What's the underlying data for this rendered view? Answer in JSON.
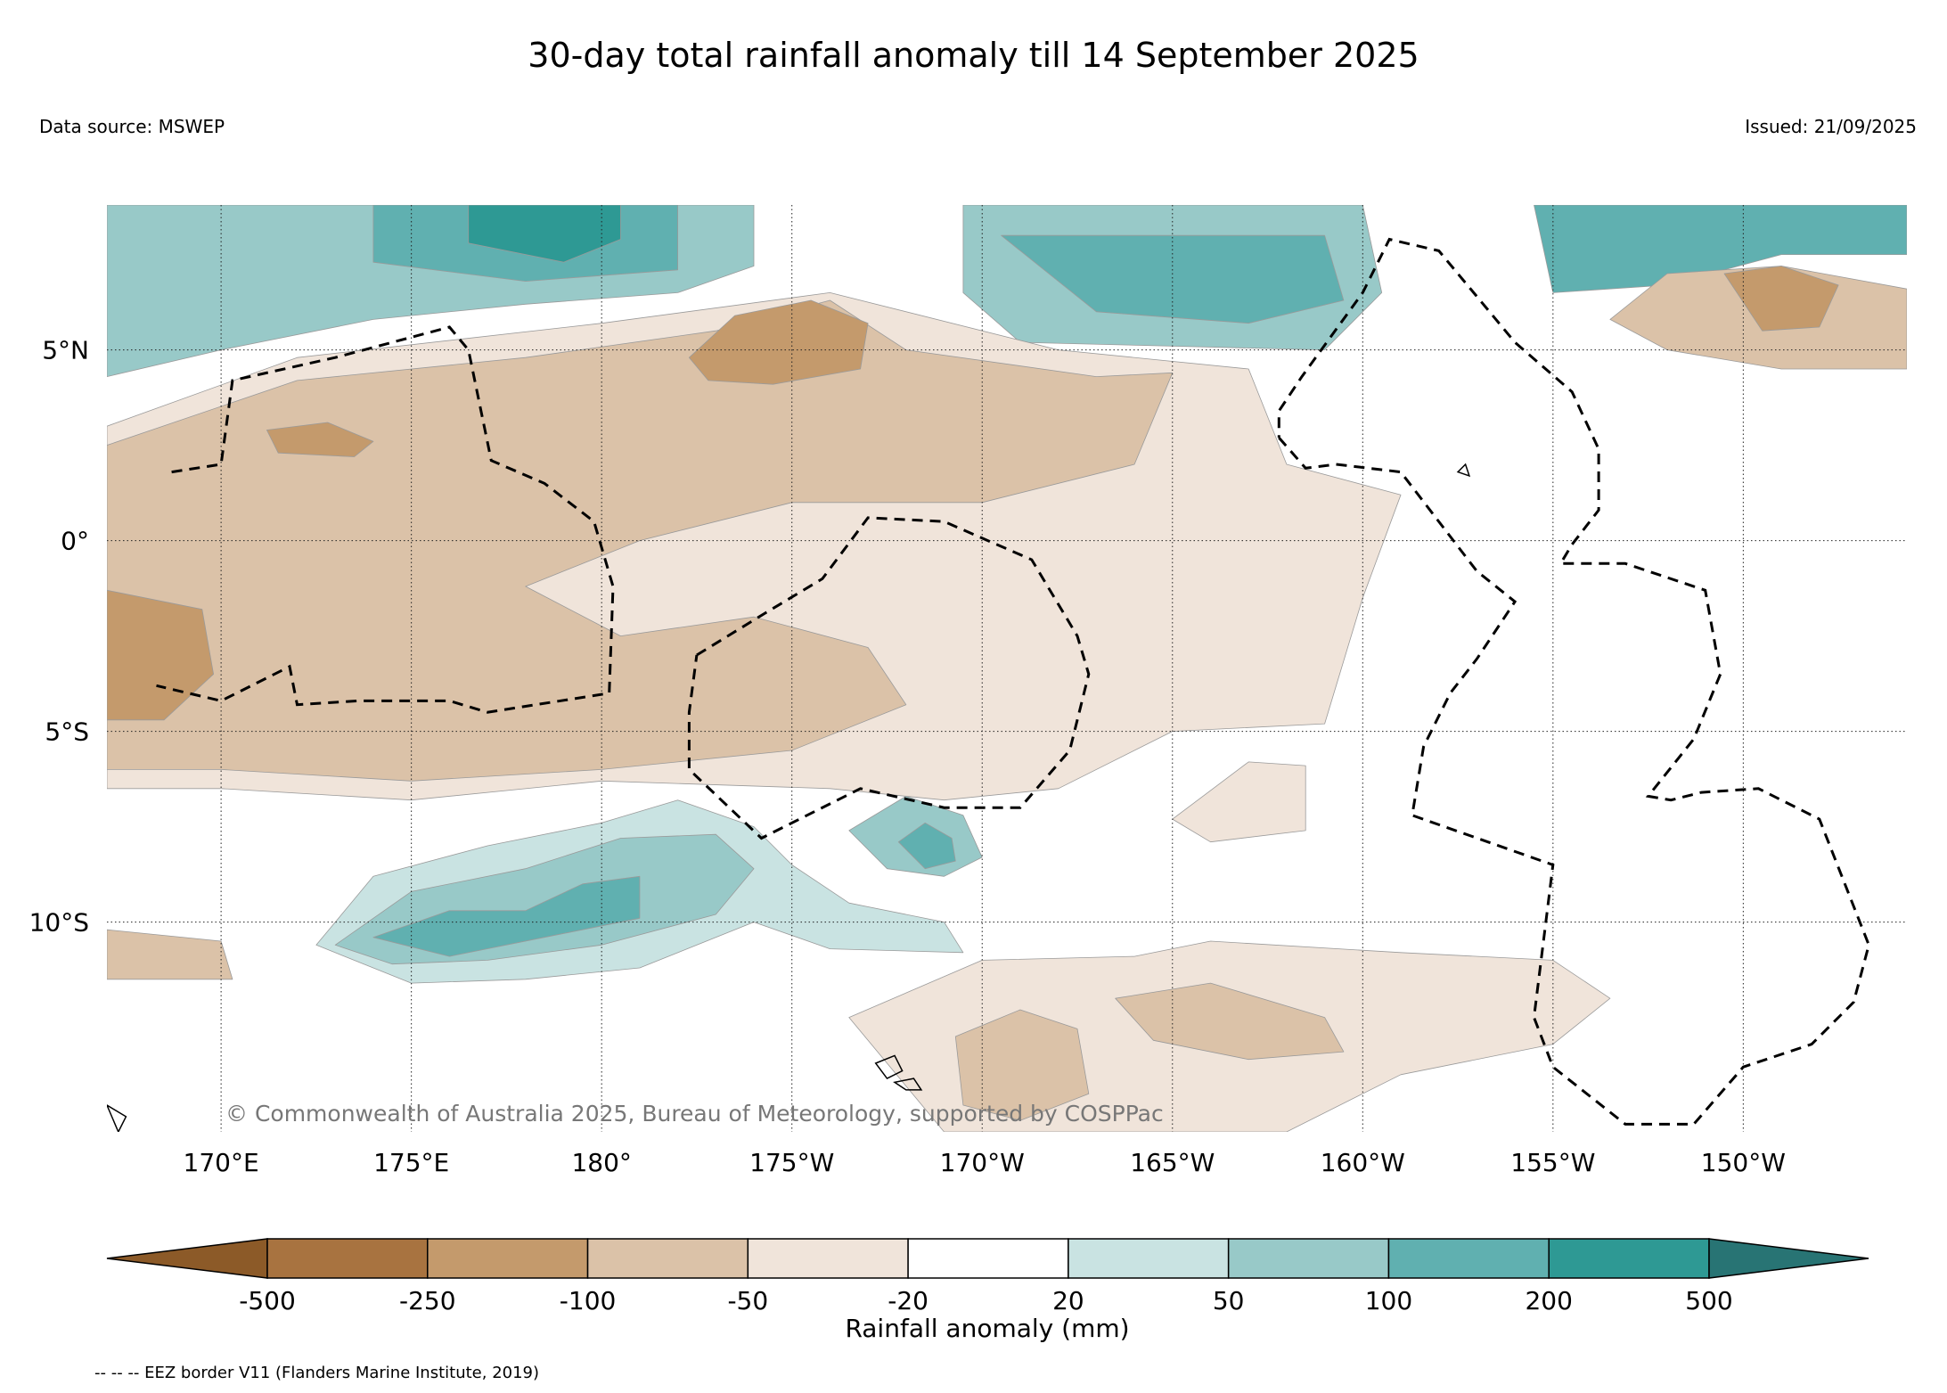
{
  "title": "30-day total rainfall anomaly till 14 September 2025",
  "data_source": "Data source: MSWEP",
  "issued": "Issued: 21/09/2025",
  "copyright": "© Commonwealth of Australia 2025, Bureau of Meteorology, supported by COSPPac",
  "eez_note": "-- -- -- EEZ border V11 (Flanders Marine Institute, 2019)",
  "map": {
    "lon_range": [
      167,
      214.3
    ],
    "lat_range": [
      -15.5,
      8.8
    ],
    "lon_ticks": [
      {
        "value": 170,
        "label": "170°E"
      },
      {
        "value": 175,
        "label": "175°E"
      },
      {
        "value": 180,
        "label": "180°"
      },
      {
        "value": 185,
        "label": "175°W"
      },
      {
        "value": 190,
        "label": "170°W"
      },
      {
        "value": 195,
        "label": "165°W"
      },
      {
        "value": 200,
        "label": "160°W"
      },
      {
        "value": 205,
        "label": "155°W"
      },
      {
        "value": 210,
        "label": "150°W"
      }
    ],
    "lat_ticks": [
      {
        "value": 5,
        "label": "5°N"
      },
      {
        "value": 0,
        "label": "0°"
      },
      {
        "value": -5,
        "label": "5°S"
      },
      {
        "value": -10,
        "label": "10°S"
      }
    ]
  },
  "colorbar": {
    "label": "Rainfall anomaly (mm)",
    "levels": [
      "-500",
      "-250",
      "-100",
      "-50",
      "-20",
      "20",
      "50",
      "100",
      "200",
      "500"
    ],
    "colors": [
      "#8c5a28",
      "#a87340",
      "#c49a6c",
      "#dbc2a8",
      "#f0e4da",
      "#ffffff",
      "#c9e3e2",
      "#98c9c8",
      "#60b0b0",
      "#2e9994",
      "#287474"
    ]
  },
  "anomaly_regions": [
    {
      "name": "northwest-wet-band",
      "color": "#98c9c8",
      "points": [
        [
          167,
          4.3
        ],
        [
          170,
          5
        ],
        [
          174,
          5.8
        ],
        [
          178,
          6.2
        ],
        [
          182,
          6.5
        ],
        [
          184,
          7.2
        ],
        [
          184,
          8.8
        ],
        [
          167,
          8.8
        ]
      ]
    },
    {
      "name": "north-center-wet-core",
      "color": "#60b0b0",
      "points": [
        [
          174,
          7.3
        ],
        [
          178,
          6.8
        ],
        [
          182,
          7.1
        ],
        [
          182,
          8.8
        ],
        [
          174,
          8.8
        ]
      ]
    },
    {
      "name": "north-center-wet-peak",
      "color": "#2e9994",
      "points": [
        [
          176.5,
          7.8
        ],
        [
          179,
          7.3
        ],
        [
          180.5,
          7.9
        ],
        [
          180.5,
          8.8
        ],
        [
          176.5,
          8.8
        ]
      ]
    },
    {
      "name": "north-east-wet-band",
      "color": "#98c9c8",
      "points": [
        [
          189.5,
          8.8
        ],
        [
          189.5,
          6.5
        ],
        [
          191,
          5.2
        ],
        [
          195,
          5.1
        ],
        [
          199,
          5
        ],
        [
          200.5,
          6.5
        ],
        [
          200,
          8.8
        ]
      ]
    },
    {
      "name": "north-east-wet-core",
      "color": "#60b0b0",
      "points": [
        [
          190.5,
          8
        ],
        [
          193,
          6
        ],
        [
          197,
          5.7
        ],
        [
          199.5,
          6.3
        ],
        [
          199,
          8
        ]
      ]
    },
    {
      "name": "far-northeast-wet",
      "color": "#60b0b0",
      "points": [
        [
          204.5,
          8.8
        ],
        [
          205,
          6.5
        ],
        [
          208,
          6.7
        ],
        [
          211,
          7.5
        ],
        [
          214.3,
          7.5
        ],
        [
          214.3,
          8.8
        ]
      ]
    },
    {
      "name": "far-northeast-dry",
      "color": "#dbc2a8",
      "points": [
        [
          206.5,
          5.8
        ],
        [
          208,
          5
        ],
        [
          211,
          4.5
        ],
        [
          214.3,
          4.5
        ],
        [
          214.3,
          6.6
        ],
        [
          211,
          7.2
        ],
        [
          208,
          7
        ]
      ]
    },
    {
      "name": "far-northeast-dry-core",
      "color": "#c49a6c",
      "points": [
        [
          209.5,
          7
        ],
        [
          210.5,
          5.5
        ],
        [
          212,
          5.6
        ],
        [
          212.5,
          6.7
        ],
        [
          211,
          7.2
        ]
      ]
    },
    {
      "name": "central-light-dry",
      "color": "#f0e4da",
      "points": [
        [
          167,
          3
        ],
        [
          172,
          4.8
        ],
        [
          180,
          5.7
        ],
        [
          186,
          6.5
        ],
        [
          192,
          5
        ],
        [
          197,
          4.5
        ],
        [
          198,
          2
        ],
        [
          201,
          1.2
        ],
        [
          200,
          -1.5
        ],
        [
          199,
          -4.8
        ],
        [
          195,
          -5
        ],
        [
          192,
          -6.5
        ],
        [
          189,
          -6.8
        ],
        [
          186,
          -6.5
        ],
        [
          180,
          -6.3
        ],
        [
          175,
          -6.8
        ],
        [
          170,
          -6.5
        ],
        [
          167,
          -6.5
        ]
      ]
    },
    {
      "name": "central-dry-band",
      "color": "#dbc2a8",
      "points": [
        [
          167,
          2.5
        ],
        [
          172,
          4.2
        ],
        [
          178,
          4.8
        ],
        [
          183,
          5.5
        ],
        [
          186,
          6.3
        ],
        [
          188,
          5
        ],
        [
          193,
          4.3
        ],
        [
          195,
          4.4
        ],
        [
          194,
          2
        ],
        [
          190,
          1
        ],
        [
          185,
          1
        ],
        [
          181,
          0
        ],
        [
          178,
          -1.2
        ],
        [
          180.5,
          -2.5
        ],
        [
          184,
          -2
        ],
        [
          187,
          -2.8
        ],
        [
          188,
          -4.3
        ],
        [
          185,
          -5.5
        ],
        [
          180,
          -6
        ],
        [
          175,
          -6.3
        ],
        [
          170,
          -6
        ],
        [
          167,
          -6
        ]
      ]
    },
    {
      "name": "north-dry-core",
      "color": "#c49a6c",
      "points": [
        [
          182.3,
          4.8
        ],
        [
          183.5,
          5.9
        ],
        [
          185.5,
          6.3
        ],
        [
          187,
          5.7
        ],
        [
          186.8,
          4.5
        ],
        [
          184.5,
          4.1
        ],
        [
          182.8,
          4.2
        ]
      ]
    },
    {
      "name": "west-dry-core",
      "color": "#c49a6c",
      "points": [
        [
          167,
          -1.3
        ],
        [
          169.5,
          -1.8
        ],
        [
          169.8,
          -3.5
        ],
        [
          168.5,
          -4.7
        ],
        [
          167,
          -4.7
        ]
      ]
    },
    {
      "name": "west-dry-patch",
      "color": "#c49a6c",
      "points": [
        [
          171.2,
          2.9
        ],
        [
          172.8,
          3.1
        ],
        [
          174,
          2.6
        ],
        [
          173.5,
          2.2
        ],
        [
          171.5,
          2.3
        ]
      ]
    },
    {
      "name": "southwest-wet-band",
      "color": "#c9e3e2",
      "points": [
        [
          172.5,
          -10.6
        ],
        [
          174,
          -8.8
        ],
        [
          177,
          -8
        ],
        [
          180,
          -7.4
        ],
        [
          182,
          -6.8
        ],
        [
          184,
          -7.5
        ],
        [
          185,
          -8.5
        ],
        [
          186.5,
          -9.5
        ],
        [
          189,
          -10
        ],
        [
          189.5,
          -10.8
        ],
        [
          186,
          -10.7
        ],
        [
          184,
          -10
        ],
        [
          181,
          -11.2
        ],
        [
          178,
          -11.5
        ],
        [
          175,
          -11.6
        ]
      ]
    },
    {
      "name": "southwest-wet-core",
      "color": "#98c9c8",
      "points": [
        [
          173,
          -10.6
        ],
        [
          175,
          -9.2
        ],
        [
          178,
          -8.6
        ],
        [
          180.5,
          -7.8
        ],
        [
          183,
          -7.7
        ],
        [
          184,
          -8.6
        ],
        [
          183,
          -9.8
        ],
        [
          180,
          -10.6
        ],
        [
          177,
          -11
        ],
        [
          174.5,
          -11.1
        ]
      ]
    },
    {
      "name": "southwest-wet-peak",
      "color": "#60b0b0",
      "points": [
        [
          174,
          -10.4
        ],
        [
          176,
          -9.7
        ],
        [
          178,
          -9.7
        ],
        [
          179.5,
          -9
        ],
        [
          181,
          -8.8
        ],
        [
          181,
          -9.9
        ],
        [
          178.5,
          -10.4
        ],
        [
          176,
          -10.9
        ]
      ]
    },
    {
      "name": "wet-island-patch",
      "color": "#98c9c8",
      "points": [
        [
          186.5,
          -7.6
        ],
        [
          188,
          -6.7
        ],
        [
          189.5,
          -7.2
        ],
        [
          190,
          -8.3
        ],
        [
          189,
          -8.8
        ],
        [
          187.5,
          -8.6
        ]
      ]
    },
    {
      "name": "wet-island-core",
      "color": "#60b0b0",
      "points": [
        [
          187.8,
          -7.9
        ],
        [
          188.5,
          -7.4
        ],
        [
          189.2,
          -7.8
        ],
        [
          189.3,
          -8.4
        ],
        [
          188.5,
          -8.6
        ]
      ]
    },
    {
      "name": "south-light-dry",
      "color": "#f0e4da",
      "points": [
        [
          186.5,
          -12.5
        ],
        [
          190,
          -11
        ],
        [
          194,
          -10.9
        ],
        [
          196,
          -10.5
        ],
        [
          201,
          -10.8
        ],
        [
          205,
          -11
        ],
        [
          206.5,
          -12
        ],
        [
          205,
          -13.2
        ],
        [
          201,
          -14
        ],
        [
          198,
          -15.5
        ],
        [
          189,
          -15.5
        ]
      ]
    },
    {
      "name": "south-dry-core-1",
      "color": "#dbc2a8",
      "points": [
        [
          189.3,
          -13
        ],
        [
          191,
          -12.3
        ],
        [
          192.5,
          -12.8
        ],
        [
          192.8,
          -14.5
        ],
        [
          191,
          -15.2
        ],
        [
          189.5,
          -14.8
        ]
      ]
    },
    {
      "name": "south-dry-core-2",
      "color": "#dbc2a8",
      "points": [
        [
          193.5,
          -12
        ],
        [
          196,
          -11.6
        ],
        [
          199,
          -12.5
        ],
        [
          199.5,
          -13.4
        ],
        [
          197,
          -13.6
        ],
        [
          194.5,
          -13.1
        ]
      ]
    },
    {
      "name": "southwest-dry-patch",
      "color": "#dbc2a8",
      "points": [
        [
          167,
          -10.2
        ],
        [
          170,
          -10.5
        ],
        [
          170.3,
          -11.5
        ],
        [
          167,
          -11.5
        ]
      ]
    },
    {
      "name": "east-light-dry-patch",
      "color": "#f0e4da",
      "points": [
        [
          195,
          -7.3
        ],
        [
          197,
          -5.8
        ],
        [
          198.5,
          -5.9
        ],
        [
          198.5,
          -7.6
        ],
        [
          196,
          -7.9
        ]
      ]
    }
  ],
  "eez_borders": [
    {
      "name": "eez-border-kiribati-gilbert",
      "points": [
        [
          168.7,
          1.8
        ],
        [
          170,
          2
        ],
        [
          170.3,
          4.2
        ],
        [
          173,
          4.8
        ],
        [
          176,
          5.6
        ],
        [
          176.5,
          5
        ],
        [
          177.1,
          2.1
        ],
        [
          178.5,
          1.5
        ],
        [
          179.8,
          0.5
        ],
        [
          180.3,
          -1.2
        ],
        [
          180.2,
          -4
        ],
        [
          177,
          -4.5
        ],
        [
          176,
          -4.2
        ],
        [
          173.6,
          -4.2
        ],
        [
          172,
          -4.3
        ],
        [
          171.8,
          -3.3
        ],
        [
          170,
          -4.2
        ],
        [
          168.3,
          -3.8
        ]
      ]
    },
    {
      "name": "eez-border-kiribati-phoenix",
      "points": [
        [
          182.5,
          -3
        ],
        [
          184.3,
          -1.9
        ],
        [
          185.8,
          -1
        ],
        [
          187,
          0.6
        ],
        [
          189,
          0.5
        ],
        [
          191.3,
          -0.5
        ],
        [
          192.5,
          -2.5
        ],
        [
          192.8,
          -3.5
        ],
        [
          192.3,
          -5.5
        ],
        [
          191,
          -7
        ],
        [
          189,
          -7
        ],
        [
          186.8,
          -6.5
        ],
        [
          184.2,
          -7.8
        ],
        [
          182.3,
          -6
        ],
        [
          182.3,
          -4.5
        ],
        [
          182.5,
          -3
        ]
      ]
    },
    {
      "name": "eez-border-kiribati-line-west",
      "points": [
        [
          197.8,
          2.7
        ],
        [
          198.5,
          1.9
        ],
        [
          199.3,
          2
        ],
        [
          201,
          1.8
        ],
        [
          203,
          -0.8
        ],
        [
          204,
          -1.6
        ],
        [
          203,
          -3.1
        ],
        [
          202.3,
          -4
        ],
        [
          201.6,
          -5.4
        ],
        [
          201.3,
          -7.2
        ],
        [
          205,
          -8.5
        ],
        [
          204.5,
          -12.5
        ],
        [
          205,
          -13.8
        ],
        [
          206.9,
          -15.3
        ],
        [
          208.7,
          -15.3
        ],
        [
          210,
          -13.8
        ],
        [
          211.8,
          -13.2
        ],
        [
          212.9,
          -12.1
        ],
        [
          213.3,
          -10.6
        ],
        [
          212,
          -7.3
        ],
        [
          210.4,
          -6.5
        ],
        [
          208.9,
          -6.6
        ],
        [
          208.1,
          -6.8
        ],
        [
          207.5,
          -6.7
        ],
        [
          208.7,
          -5.2
        ],
        [
          209.4,
          -3.5
        ],
        [
          209,
          -1.3
        ],
        [
          206.9,
          -0.6
        ],
        [
          205.2,
          -0.6
        ],
        [
          205.5,
          -0.1
        ],
        [
          206.2,
          0.8
        ],
        [
          206.2,
          2.4
        ],
        [
          205.5,
          3.9
        ],
        [
          204,
          5.2
        ],
        [
          203.5,
          5.8
        ],
        [
          202,
          7.6
        ],
        [
          200.7,
          7.9
        ],
        [
          200,
          6.5
        ],
        [
          198.4,
          4.3
        ],
        [
          197.8,
          3.4
        ],
        [
          197.8,
          2.7
        ]
      ]
    }
  ],
  "coastlines": [
    {
      "name": "coast-island-north",
      "points": [
        [
          202.5,
          1.8
        ],
        [
          202.8,
          1.7
        ],
        [
          202.7,
          2
        ]
      ]
    },
    {
      "name": "coast-island-south-1",
      "points": [
        [
          187.2,
          -13.7
        ],
        [
          187.7,
          -13.5
        ],
        [
          187.9,
          -13.9
        ],
        [
          187.5,
          -14.1
        ]
      ]
    },
    {
      "name": "coast-island-south-2",
      "points": [
        [
          187.7,
          -14.2
        ],
        [
          188.2,
          -14.1
        ],
        [
          188.4,
          -14.4
        ],
        [
          188,
          -14.4
        ]
      ]
    },
    {
      "name": "coast-island-west",
      "points": [
        [
          167,
          -14.8
        ],
        [
          167.5,
          -15.1
        ],
        [
          167.3,
          -15.5
        ]
      ]
    }
  ]
}
